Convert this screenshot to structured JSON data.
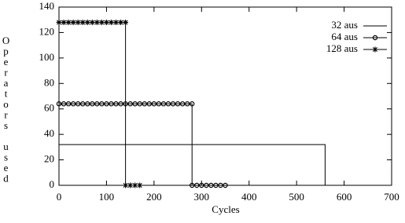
{
  "chart_data": {
    "type": "line",
    "xlabel": "Cycles",
    "ylabel": "Operators used",
    "xlim": [
      0,
      700
    ],
    "xticks": [
      0,
      100,
      200,
      300,
      400,
      500,
      600,
      700
    ],
    "ylim": [
      0,
      140
    ],
    "yticks": [
      0,
      20,
      40,
      60,
      80,
      100,
      120,
      140
    ],
    "legend": "upper right",
    "grid": false,
    "series": [
      {
        "name": "32 aus",
        "color": "#000000",
        "marker": "none",
        "x": [
          0,
          560,
          560
        ],
        "values": [
          32,
          32,
          0
        ]
      },
      {
        "name": "64 aus",
        "color": "#000000",
        "marker": "circle",
        "x": [
          0,
          10,
          20,
          30,
          40,
          50,
          60,
          70,
          80,
          90,
          100,
          110,
          120,
          130,
          140,
          150,
          160,
          170,
          180,
          190,
          200,
          210,
          220,
          230,
          240,
          250,
          260,
          270,
          280,
          280,
          290,
          300,
          310,
          320,
          330,
          340,
          350
        ],
        "values": [
          64,
          64,
          64,
          64,
          64,
          64,
          64,
          64,
          64,
          64,
          64,
          64,
          64,
          64,
          64,
          64,
          64,
          64,
          64,
          64,
          64,
          64,
          64,
          64,
          64,
          64,
          64,
          64,
          64,
          0,
          0,
          0,
          0,
          0,
          0,
          0,
          0
        ]
      },
      {
        "name": "128 aus",
        "color": "#000000",
        "marker": "star",
        "x": [
          0,
          10,
          20,
          30,
          40,
          50,
          60,
          70,
          80,
          90,
          100,
          110,
          120,
          130,
          140,
          140,
          150,
          160,
          170
        ],
        "values": [
          128,
          128,
          128,
          128,
          128,
          128,
          128,
          128,
          128,
          128,
          128,
          128,
          128,
          128,
          128,
          0,
          0,
          0,
          0
        ]
      }
    ]
  }
}
